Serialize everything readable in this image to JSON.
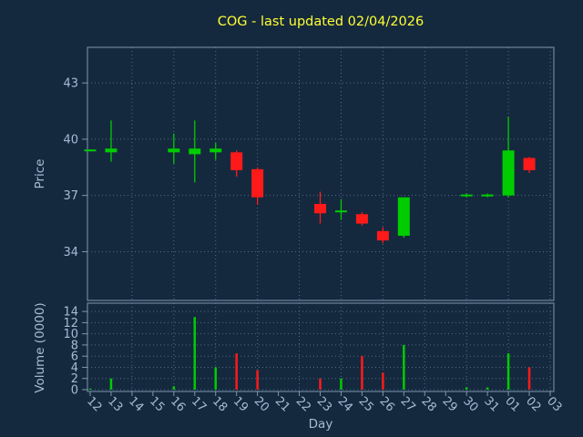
{
  "window": {
    "title": "COG - last updated 02/04/2026"
  },
  "chart_data": {
    "type": "candlestick",
    "title": "COG - last updated 02/04/2026",
    "xlabel": "Day",
    "price_ylabel": "Price",
    "volume_ylabel": "Volume (0000)",
    "x_ticks": [
      "12",
      "13",
      "14",
      "15",
      "16",
      "17",
      "18",
      "19",
      "20",
      "21",
      "22",
      "23",
      "24",
      "25",
      "26",
      "27",
      "28",
      "29",
      "30",
      "31",
      "01",
      "02",
      "03"
    ],
    "price_ticks": [
      34,
      37,
      40,
      43
    ],
    "volume_ticks": [
      0,
      2,
      4,
      6,
      8,
      10,
      12,
      14
    ],
    "price_range": [
      31.4,
      44.9
    ],
    "volume_range": [
      0,
      15
    ],
    "grid": true,
    "legend": "none",
    "colors": {
      "up": "#00cc00",
      "down": "#ff1a1a",
      "background": "#15293e",
      "frame": "#7d96ad",
      "grid": "#4d6b8c",
      "title": "#ffff33",
      "label": "#a4bcd4"
    },
    "candles": [
      {
        "day": "12",
        "open": 39.4,
        "high": 39.45,
        "low": 39.35,
        "close": 39.45,
        "volume": 0.2
      },
      {
        "day": "13",
        "open": 39.3,
        "high": 41.0,
        "low": 38.8,
        "close": 39.5,
        "volume": 2.0
      },
      {
        "day": "16",
        "open": 39.3,
        "high": 40.3,
        "low": 38.7,
        "close": 39.5,
        "volume": 0.6
      },
      {
        "day": "17",
        "open": 39.2,
        "high": 41.0,
        "low": 37.7,
        "close": 39.5,
        "volume": 13.0
      },
      {
        "day": "18",
        "open": 39.3,
        "high": 39.8,
        "low": 38.9,
        "close": 39.5,
        "volume": 4.0
      },
      {
        "day": "19",
        "open": 39.3,
        "high": 39.4,
        "low": 38.0,
        "close": 38.35,
        "volume": 6.5
      },
      {
        "day": "20",
        "open": 38.4,
        "high": 38.5,
        "low": 36.5,
        "close": 36.9,
        "volume": 3.5
      },
      {
        "day": "23",
        "open": 36.55,
        "high": 37.2,
        "low": 35.5,
        "close": 36.05,
        "volume": 2.0
      },
      {
        "day": "24",
        "open": 36.1,
        "high": 36.8,
        "low": 35.7,
        "close": 36.2,
        "volume": 2.0
      },
      {
        "day": "25",
        "open": 36.0,
        "high": 36.1,
        "low": 35.4,
        "close": 35.5,
        "volume": 6.0
      },
      {
        "day": "26",
        "open": 35.1,
        "high": 35.3,
        "low": 34.45,
        "close": 34.6,
        "volume": 3.0
      },
      {
        "day": "27",
        "open": 34.85,
        "high": 36.9,
        "low": 34.75,
        "close": 36.9,
        "volume": 8.0
      },
      {
        "day": "30",
        "open": 37.0,
        "high": 37.1,
        "low": 36.9,
        "close": 37.05,
        "volume": 0.4
      },
      {
        "day": "31",
        "open": 36.95,
        "high": 37.1,
        "low": 36.9,
        "close": 37.05,
        "volume": 0.4
      },
      {
        "day": "01",
        "open": 37.0,
        "high": 41.2,
        "low": 36.9,
        "close": 39.4,
        "volume": 6.5
      },
      {
        "day": "02",
        "open": 39.0,
        "high": 39.05,
        "low": 38.2,
        "close": 38.35,
        "volume": 4.0
      }
    ]
  }
}
